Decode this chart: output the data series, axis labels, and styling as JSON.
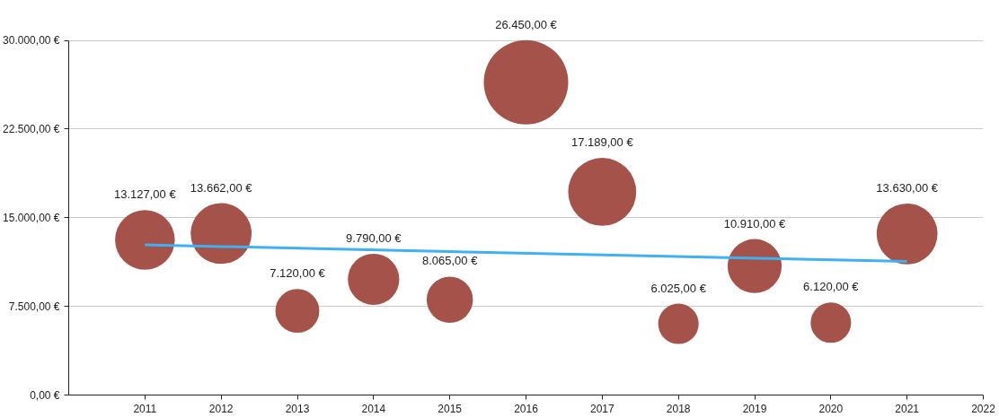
{
  "chart_data": {
    "type": "bubble",
    "x": [
      2011,
      2012,
      2013,
      2014,
      2015,
      2016,
      2017,
      2018,
      2019,
      2020,
      2021
    ],
    "xlim": [
      2010,
      2022
    ],
    "xticks": [
      2011,
      2012,
      2013,
      2014,
      2015,
      2016,
      2017,
      2018,
      2019,
      2020,
      2021,
      2022
    ],
    "ylim": [
      0,
      30000
    ],
    "yticks": [
      {
        "value": 0,
        "label": "0,00 €"
      },
      {
        "value": 7500,
        "label": "7.500,00 €"
      },
      {
        "value": 15000,
        "label": "15.000,00 €"
      },
      {
        "value": 22500,
        "label": "22.500,00 €"
      },
      {
        "value": 30000,
        "label": "30.000,00 €"
      }
    ],
    "grid": "y",
    "series": [
      {
        "color": "#a5524a",
        "values": [
          13127,
          13662,
          7120,
          9790,
          8065,
          26450,
          17189,
          6025,
          10910,
          6120,
          13630
        ],
        "sizes": [
          0.5,
          0.52,
          0.27,
          0.37,
          0.3,
          1.0,
          0.65,
          0.23,
          0.41,
          0.23,
          0.52
        ],
        "value_labels": [
          "13.127,00 €",
          "13.662,00 €",
          "7.120,00 €",
          "9.790,00 €",
          "8.065,00 €",
          "26.450,00 €",
          "17.189,00 €",
          "6.025,00 €",
          "10.910,00 €",
          "6.120,00 €",
          "13.630,00 €"
        ]
      },
      {
        "type": "line",
        "color": "#3fb0f0",
        "x": [
          2011,
          2021
        ],
        "values": [
          12700,
          11300
        ]
      }
    ]
  }
}
